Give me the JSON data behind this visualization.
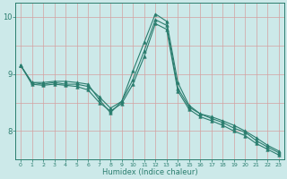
{
  "xlabel": "Humidex (Indice chaleur)",
  "background_color": "#cce9e9",
  "grid_color_v": "#d4a0a0",
  "grid_color_h": "#d4a0a0",
  "line_color": "#2a7d6e",
  "xlim": [
    -0.5,
    23.5
  ],
  "ylim": [
    7.5,
    10.25
  ],
  "yticks": [
    8,
    9,
    10
  ],
  "xticks": [
    0,
    1,
    2,
    3,
    4,
    5,
    6,
    7,
    8,
    9,
    10,
    11,
    12,
    13,
    14,
    15,
    16,
    17,
    18,
    19,
    20,
    21,
    22,
    23
  ],
  "hgrid_vals": [
    7.5,
    8.0,
    8.5,
    9.0,
    9.5,
    10.0
  ],
  "series": [
    {
      "x": [
        0,
        1,
        2,
        3,
        4,
        5,
        6,
        7,
        8,
        9,
        10,
        11,
        12,
        13,
        14,
        15,
        16,
        17,
        18,
        19,
        20,
        21,
        22,
        23
      ],
      "y": [
        9.15,
        8.85,
        8.85,
        8.87,
        8.87,
        8.85,
        8.82,
        8.55,
        8.32,
        8.52,
        9.05,
        9.55,
        10.05,
        9.92,
        8.85,
        8.45,
        8.3,
        8.25,
        8.18,
        8.1,
        8.0,
        7.88,
        7.75,
        7.65
      ]
    },
    {
      "x": [
        0,
        1,
        2,
        3,
        4,
        5,
        6,
        7,
        8,
        9,
        10,
        11,
        12,
        13,
        14,
        15,
        16,
        17,
        18,
        19,
        20,
        21,
        22,
        23
      ],
      "y": [
        9.15,
        8.85,
        8.82,
        8.85,
        8.82,
        8.82,
        8.78,
        8.6,
        8.4,
        8.52,
        8.9,
        9.4,
        9.95,
        9.85,
        8.75,
        8.42,
        8.3,
        8.22,
        8.15,
        8.05,
        7.98,
        7.83,
        7.72,
        7.62
      ]
    },
    {
      "x": [
        0,
        1,
        2,
        3,
        4,
        5,
        6,
        7,
        8,
        9,
        10,
        11,
        12,
        13,
        14,
        15,
        16,
        17,
        18,
        19,
        20,
        21,
        22,
        23
      ],
      "y": [
        9.15,
        8.82,
        8.8,
        8.82,
        8.8,
        8.78,
        8.72,
        8.5,
        8.35,
        8.48,
        8.82,
        9.3,
        9.88,
        9.78,
        8.7,
        8.38,
        8.25,
        8.18,
        8.1,
        8.0,
        7.92,
        7.78,
        7.68,
        7.58
      ]
    }
  ]
}
